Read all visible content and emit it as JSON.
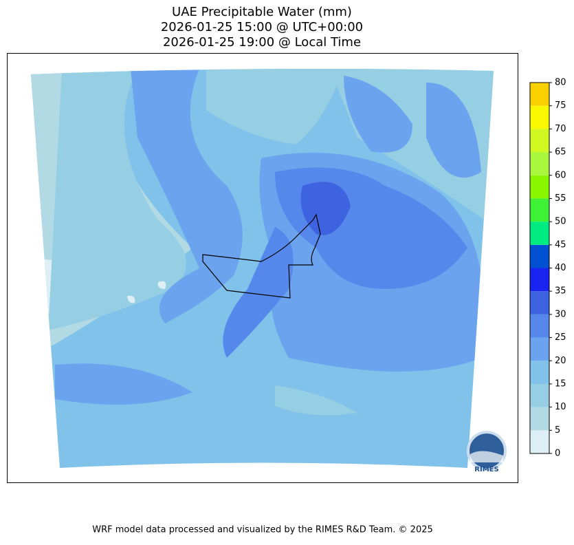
{
  "title": [
    "UAE Precipitable Water (mm)",
    "2026-01-25 15:00 @ UTC+00:00",
    "2026-01-25 19:00 @ Local Time"
  ],
  "colorbar": {
    "ticks": [
      0,
      5,
      10,
      15,
      20,
      25,
      30,
      35,
      40,
      45,
      50,
      55,
      60,
      65,
      70,
      75,
      80
    ],
    "colors": [
      "#deeef5",
      "#b2dae5",
      "#96cfe3",
      "#80c2ea",
      "#6ba3ee",
      "#5588ea",
      "#3e63e0",
      "#1a24f0",
      "#0050d2",
      "#00ea82",
      "#3ef036",
      "#88f700",
      "#aaf83e",
      "#d2f821",
      "#f8f800",
      "#f9d000"
    ]
  },
  "logo": "RIMES",
  "footer": "WRF model data processed and visualized by the RIMES R&D Team. © 2025"
}
